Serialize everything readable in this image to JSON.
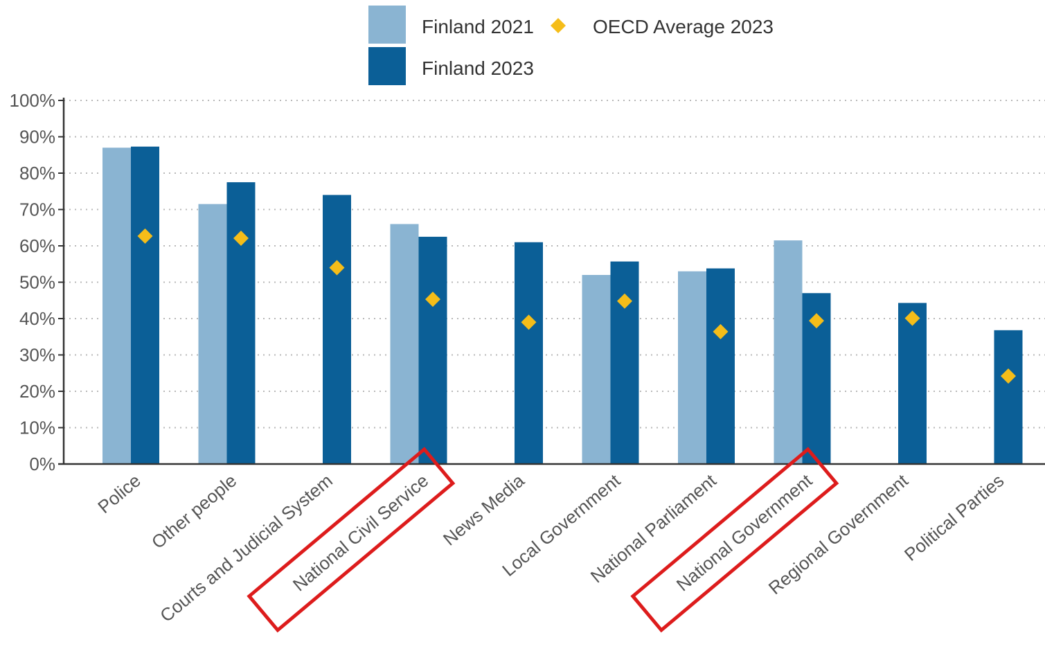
{
  "chart_data": {
    "type": "bar",
    "title": "",
    "xlabel": "",
    "ylabel": "",
    "ylim": [
      0,
      100
    ],
    "yticks": [
      "0%",
      "10%",
      "20%",
      "30%",
      "40%",
      "50%",
      "60%",
      "70%",
      "80%",
      "90%",
      "100%"
    ],
    "grid": "horizontal dotted",
    "legend_position": "top",
    "categories": [
      "Police",
      "Other people",
      "Courts and Judicial System",
      "National Civil Service",
      "News Media",
      "Local Government",
      "National Parliament",
      "National Government",
      "Regional Government",
      "Political Parties"
    ],
    "highlighted_categories": [
      "National Civil Service",
      "National Government"
    ],
    "series": [
      {
        "name": "Finland 2021",
        "kind": "bar",
        "color": "#8ab4d2",
        "values": [
          87,
          71.5,
          null,
          66,
          null,
          52,
          53,
          61.5,
          null,
          null
        ]
      },
      {
        "name": "Finland 2023",
        "kind": "bar",
        "color": "#0b5f97",
        "values": [
          87.3,
          77.5,
          74,
          62.5,
          61,
          55.7,
          53.8,
          47,
          44.3,
          36.8
        ]
      },
      {
        "name": "OECD Average 2023",
        "kind": "marker",
        "color": "#f5bd19",
        "values": [
          62.7,
          62.1,
          54,
          45.3,
          39,
          44.8,
          36.4,
          39.4,
          40.1,
          24.2
        ]
      }
    ],
    "highlight_color": "#dd1c1c"
  }
}
